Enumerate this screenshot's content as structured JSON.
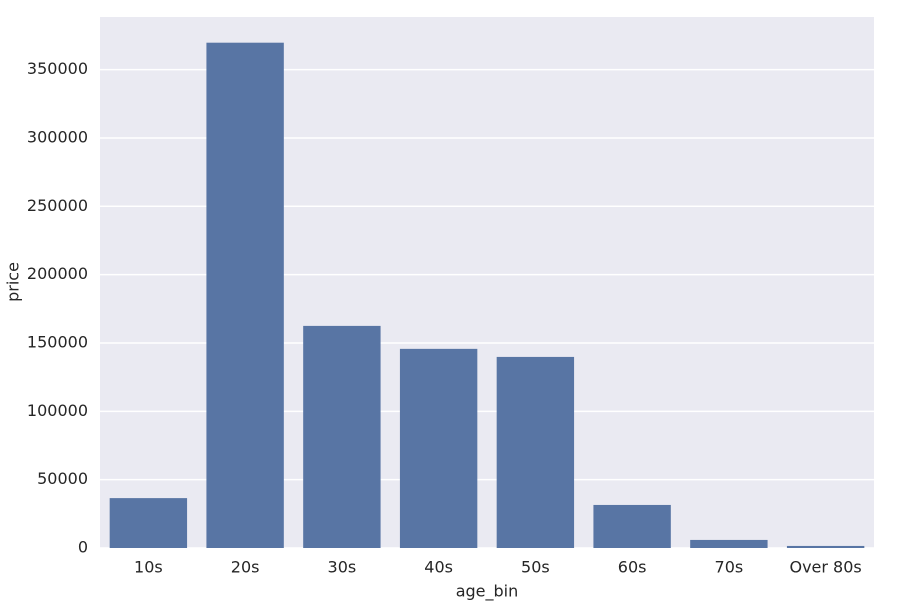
{
  "chart_data": {
    "type": "bar",
    "x_label": "age_bin",
    "y_label": "price",
    "categories": [
      "10s",
      "20s",
      "30s",
      "40s",
      "50s",
      "60s",
      "70s",
      "Over 80s"
    ],
    "values": [
      36500,
      369700,
      162500,
      145700,
      139800,
      31500,
      5900,
      1500
    ],
    "color": "#5875a4",
    "background": "#eaeaf2",
    "ylim": [
      0,
      388500
    ],
    "yticks": [
      0,
      50000,
      100000,
      150000,
      200000,
      250000,
      300000,
      350000
    ],
    "grid": true
  }
}
